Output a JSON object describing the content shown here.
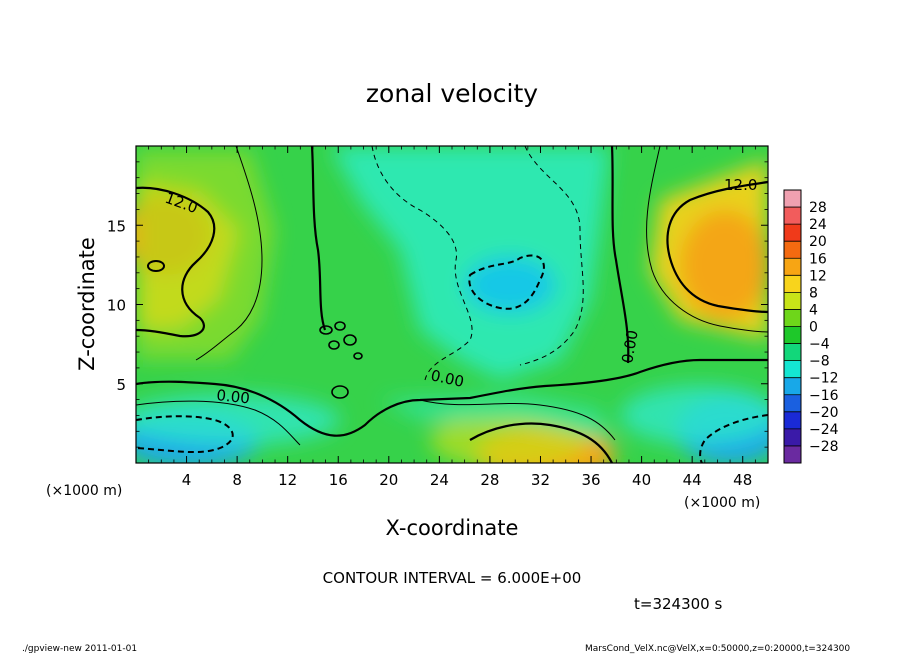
{
  "chart_data": {
    "type": "heatmap",
    "title": "zonal velocity",
    "xlabel": "X-coordinate",
    "ylabel": "Z-coordinate",
    "x_unit_label": "(×1000 m)",
    "y_unit_label": "(×1000 m)",
    "x_ticks": [
      4,
      8,
      12,
      16,
      20,
      24,
      28,
      32,
      36,
      40,
      44,
      48
    ],
    "y_ticks": [
      5,
      10,
      15
    ],
    "xlim": [
      0,
      50
    ],
    "ylim": [
      0,
      20
    ],
    "colorbar": {
      "labels": [
        "28",
        "24",
        "20",
        "16",
        "12",
        "8",
        "4",
        "0",
        "−4",
        "−8",
        "−12",
        "−16",
        "−20",
        "−24",
        "−28"
      ],
      "colors": [
        "#f0a0b0",
        "#f25c5c",
        "#f03a1a",
        "#f46a10",
        "#f7a514",
        "#f8d41c",
        "#c8e418",
        "#6ed61a",
        "#1ec82a",
        "#12d77a",
        "#14e6d2",
        "#18a8e8",
        "#1a60e0",
        "#1a2ad6",
        "#3a1aa8",
        "#6a2aa0"
      ]
    },
    "contour_labels": [
      "12.0",
      "12.0",
      "0.00",
      "0.00",
      "0.00"
    ],
    "contour_interval": "CONTOUR INTERVAL = 6.000E+00",
    "time": "t=324300 s",
    "footer_left": "./gpview-new  2011-01-01",
    "footer_right": "MarsCond_VelX.nc@VelX,x=0:50000,z=0:20000,t=324300"
  }
}
